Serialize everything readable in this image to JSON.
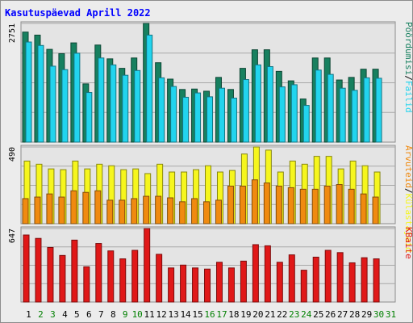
{
  "chart_data": {
    "type": "bar",
    "title": "Kasutuspäevad Aprill 2022",
    "categories": [
      "1",
      "2",
      "3",
      "4",
      "5",
      "6",
      "7",
      "8",
      "9",
      "10",
      "11",
      "12",
      "13",
      "14",
      "15",
      "16",
      "17",
      "18",
      "19",
      "20",
      "21",
      "22",
      "23",
      "24",
      "25",
      "26",
      "27",
      "28",
      "29",
      "30",
      "31"
    ],
    "weekend_days": [
      "2",
      "3",
      "9",
      "10",
      "16",
      "17",
      "23",
      "24",
      "30",
      "31"
    ],
    "colors": {
      "title": "#0000ff",
      "weekday_label": "#000000",
      "weekend_label": "#008000",
      "poordumisi": "#17805f",
      "failid": "#22d4ee",
      "kulastajaid": "#f6f61e",
      "arvuteid": "#f08a10",
      "kbaite": "#e01818"
    },
    "panels": [
      {
        "tick_label": "2751",
        "ylim": [
          0,
          2751
        ],
        "series": [
          {
            "name": "Pöördumisi",
            "values": [
              2550,
              2480,
              2150,
              2050,
              2300,
              1350,
              2250,
              1930,
              1710,
              1950,
              2751,
              1840,
              1460,
              1220,
              1230,
              1180,
              1500,
              1220,
              1710,
              2140,
              2140,
              1640,
              1420,
              1000,
              1950,
              1950,
              1440,
              1500,
              1690,
              1690,
              0
            ]
          },
          {
            "name": "Failid",
            "values": [
              2320,
              2240,
              1760,
              1680,
              2060,
              1150,
              1950,
              1790,
              1550,
              1660,
              2480,
              1490,
              1290,
              1040,
              1140,
              1050,
              1250,
              1020,
              1450,
              1790,
              1750,
              1280,
              1330,
              850,
              1670,
              1570,
              1250,
              1200,
              1490,
              1480,
              0
            ]
          }
        ],
        "legend": [
          {
            "text": "Pöördumisi",
            "color": "#17805f"
          },
          {
            "text": "/",
            "color": "#000000"
          },
          {
            "text": "Failid",
            "color": "#22d4ee"
          }
        ]
      },
      {
        "tick_label": "490",
        "ylim": [
          0,
          490
        ],
        "series": [
          {
            "name": "Külastajaid",
            "values": [
              400,
              380,
              350,
              345,
              400,
              350,
              380,
              370,
              345,
              350,
              320,
              380,
              330,
              330,
              345,
              370,
              330,
              340,
              445,
              490,
              470,
              330,
              400,
              380,
              430,
              430,
              350,
              400,
              370,
              330,
              0
            ]
          },
          {
            "name": "Arvuteid",
            "values": [
              160,
              170,
              190,
              170,
              210,
              200,
              210,
              150,
              150,
              160,
              175,
              175,
              165,
              140,
              160,
              140,
              150,
              240,
              240,
              280,
              260,
              240,
              230,
              220,
              220,
              240,
              250,
              220,
              190,
              170,
              0
            ]
          }
        ],
        "legend": [
          {
            "text": "Arvuteid",
            "color": "#f08a10"
          },
          {
            "text": "/",
            "color": "#000000"
          },
          {
            "text": "Külastajaid",
            "color": "#f6f61e"
          }
        ]
      },
      {
        "tick_label": "647",
        "ylim": [
          0,
          647
        ],
        "series": [
          {
            "name": "KBaite",
            "values": [
              590,
              560,
              480,
              410,
              545,
              310,
              515,
              450,
              380,
              455,
              647,
              420,
              300,
              325,
              300,
              290,
              350,
              300,
              360,
              505,
              495,
              350,
              415,
              280,
              395,
              455,
              435,
              345,
              390,
              380,
              0
            ]
          }
        ],
        "legend": [
          {
            "text": "KBaite",
            "color": "#e01818"
          }
        ]
      }
    ]
  }
}
